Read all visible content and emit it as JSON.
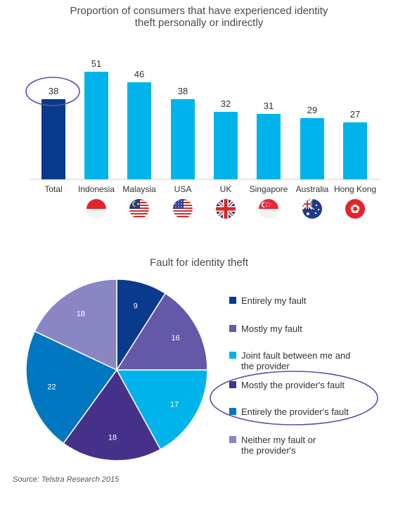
{
  "chart_data": [
    {
      "type": "bar",
      "title": "Proportion of consumers that have experienced identity\ntheft personally or indirectly",
      "categories": [
        "Total",
        "Indonesia",
        "Malaysia",
        "USA",
        "UK",
        "Singapore",
        "Australia",
        "Hong Kong"
      ],
      "values": [
        38,
        51,
        46,
        38,
        32,
        31,
        29,
        27
      ],
      "colors": [
        "#0a3a8c",
        "#00b4eb",
        "#00b4eb",
        "#00b4eb",
        "#00b4eb",
        "#00b4eb",
        "#00b4eb",
        "#00b4eb"
      ],
      "flags": [
        "",
        "indonesia-flag-icon",
        "malaysia-flag-icon",
        "usa-flag-icon",
        "uk-flag-icon",
        "singapore-flag-icon",
        "australia-flag-icon",
        "hong-kong-flag-icon"
      ],
      "highlight": "Total",
      "highlight_color": "#5b4fa8",
      "ylim": [
        0,
        55
      ],
      "grid": false,
      "legend": "none"
    },
    {
      "type": "pie",
      "title": "Fault for identity theft",
      "categories": [
        "Entirely my fault",
        "Mostly my fault",
        "Joint fault between me and\nthe provider",
        "Mostly the provider's fault",
        "Entirely the provider's fault",
        "Neither my fault or\nthe provider's"
      ],
      "values": [
        9,
        16,
        17,
        18,
        22,
        18
      ],
      "colors": [
        "#0a3a8c",
        "#6459a8",
        "#00b4eb",
        "#46318a",
        "#0077c0",
        "#8a86c4"
      ],
      "highlight": [
        "Mostly the provider's fault",
        "Entirely the provider's fault"
      ],
      "highlight_color": "#5b4fa8",
      "legend": "right"
    }
  ],
  "source": "Source: Telstra Research 2015"
}
